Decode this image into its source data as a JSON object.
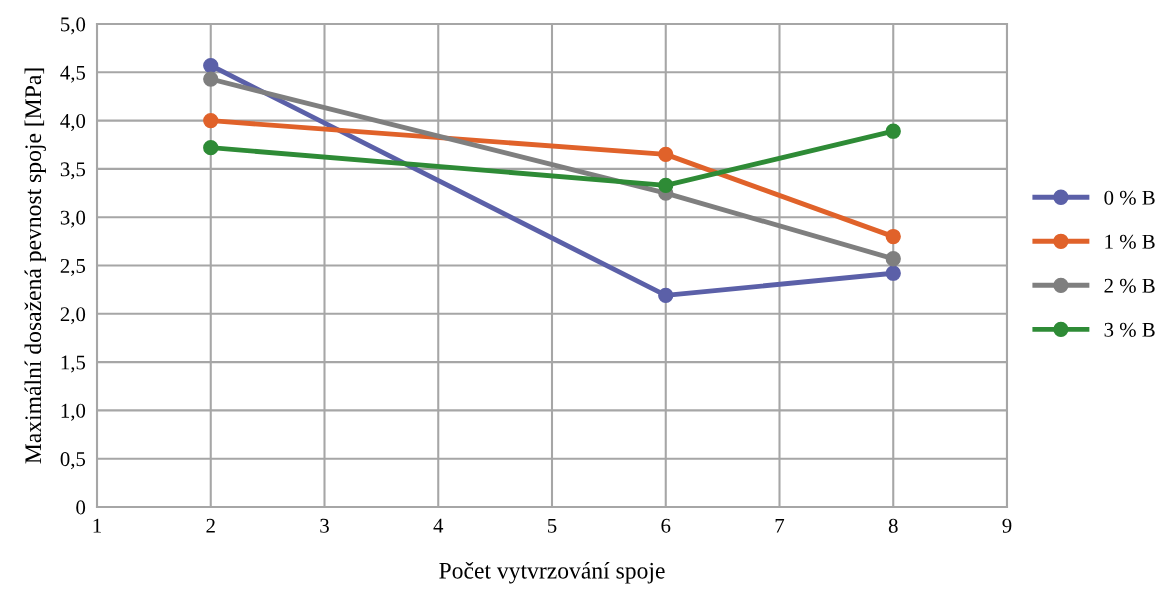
{
  "chart_data": {
    "type": "line",
    "xlabel": "Počet vytvrzování spoje",
    "ylabel": "Maximální dosažená pevnost spoje [MPa]",
    "x": [
      2,
      6,
      8
    ],
    "series": [
      {
        "name": "0 % B",
        "color": "#5b60a8",
        "values": [
          4.57,
          2.19,
          2.42
        ]
      },
      {
        "name": "1 % B",
        "color": "#e0622a",
        "values": [
          4.0,
          3.65,
          2.8
        ]
      },
      {
        "name": "2 % B",
        "color": "#7f7f7f",
        "values": [
          4.43,
          3.25,
          2.57
        ]
      },
      {
        "name": "3 % B",
        "color": "#2e8b36",
        "values": [
          3.72,
          3.33,
          3.89
        ]
      }
    ],
    "xlim": [
      1,
      9
    ],
    "xticks": [
      1,
      2,
      3,
      4,
      5,
      6,
      7,
      8,
      9
    ],
    "ylim": [
      0,
      5
    ],
    "yticks": [
      0,
      {
        "value": 0.5,
        "label": "0,5"
      },
      {
        "value": 1,
        "label": "1,0"
      },
      {
        "value": 1.5,
        "label": "1,5"
      },
      {
        "value": 2,
        "label": "2,0"
      },
      {
        "value": 2.5,
        "label": "2,5"
      },
      {
        "value": 3,
        "label": "3,0"
      },
      {
        "value": 3.5,
        "label": "3,5"
      },
      {
        "value": 4,
        "label": "4,0"
      },
      {
        "value": 4.5,
        "label": "4,5"
      },
      {
        "value": 5,
        "label": "5,0"
      }
    ],
    "grid": true,
    "legend": "right",
    "marker": "circle",
    "line_style": "solid"
  }
}
